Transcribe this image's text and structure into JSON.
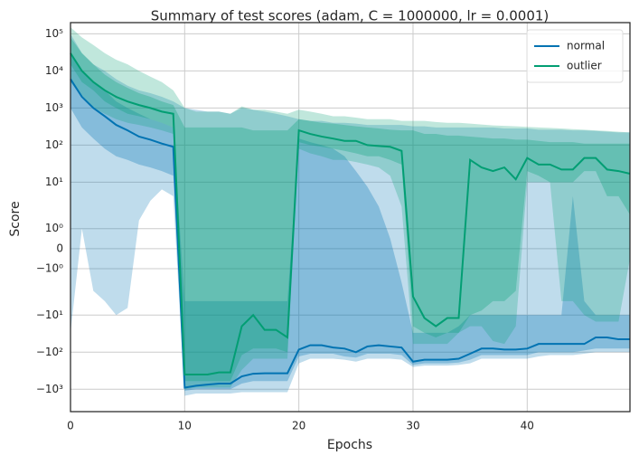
{
  "chart_data": {
    "type": "band-line",
    "title": "Summary of test scores (adam, C = 1000000, lr = 0.0001)",
    "x_label": "Epochs",
    "y_label": "Score",
    "yscale": "symlog",
    "grid": true,
    "legend": "upper right",
    "x": [
      0,
      1,
      2,
      3,
      4,
      5,
      6,
      7,
      8,
      9,
      10,
      11,
      12,
      13,
      14,
      15,
      16,
      17,
      18,
      19,
      20,
      21,
      22,
      23,
      24,
      25,
      26,
      27,
      28,
      29,
      30,
      31,
      32,
      33,
      34,
      35,
      36,
      37,
      38,
      39,
      40,
      41,
      42,
      43,
      44,
      45,
      46,
      47,
      48,
      49
    ],
    "xlim": [
      0,
      49
    ],
    "xticks": [
      0,
      10,
      20,
      30,
      40
    ],
    "ylim": [
      -4000,
      200000
    ],
    "yticks": [
      {
        "value": 100000,
        "label": "10⁵"
      },
      {
        "value": 10000,
        "label": "10⁴"
      },
      {
        "value": 1000,
        "label": "10³"
      },
      {
        "value": 100,
        "label": "10²"
      },
      {
        "value": 10,
        "label": "10¹"
      },
      {
        "value": 1,
        "label": "10⁰"
      },
      0,
      {
        "value": -1,
        "label": "−10⁰"
      },
      {
        "value": -10,
        "label": "−10¹"
      },
      {
        "value": -100,
        "label": "−10²"
      },
      {
        "value": -1000,
        "label": "−10³"
      }
    ],
    "series": [
      {
        "name": "normal",
        "color": "#0173b2",
        "values": [
          6000,
          2000,
          1000,
          600,
          350,
          250,
          170,
          140,
          110,
          90,
          -900,
          -800,
          -750,
          -700,
          -700,
          -450,
          -380,
          -370,
          -370,
          -370,
          -85,
          -65,
          -65,
          -75,
          -80,
          -100,
          -70,
          -65,
          -70,
          -75,
          -180,
          -160,
          -160,
          -160,
          -150,
          -110,
          -80,
          -80,
          -85,
          -85,
          -80,
          -60,
          -60,
          -60,
          -60,
          -60,
          -40,
          -40,
          -45,
          -45
        ],
        "outer_hi": [
          100000,
          30000,
          15000,
          10000,
          6000,
          4000,
          3000,
          2500,
          2000,
          1500,
          1000,
          900,
          800,
          800,
          700,
          1000,
          900,
          800,
          700,
          600,
          500,
          450,
          450,
          400,
          400,
          380,
          350,
          350,
          350,
          350,
          320,
          320,
          300,
          300,
          300,
          300,
          300,
          300,
          280,
          280,
          280,
          260,
          260,
          260,
          250,
          250,
          240,
          230,
          220,
          220
        ],
        "outer_lo": [
          -30,
          1,
          -3,
          -5,
          -10,
          -7,
          1.5,
          4,
          7,
          5,
          -1500,
          -1300,
          -1300,
          -1300,
          -1300,
          -1200,
          -1200,
          -1200,
          -1200,
          -1200,
          -200,
          -150,
          -150,
          -150,
          -160,
          -180,
          -150,
          -150,
          -150,
          -160,
          -250,
          -230,
          -230,
          -230,
          -220,
          -200,
          -150,
          -150,
          -150,
          -150,
          -150,
          -130,
          -120,
          -120,
          -120,
          -110,
          -100,
          -100,
          -100,
          -100
        ],
        "inner_hi": [
          30000,
          10000,
          5000,
          3000,
          1500,
          1000,
          700,
          500,
          400,
          300,
          -5,
          -5,
          -5,
          -5,
          -5,
          -5,
          -5,
          -5,
          -5,
          -5,
          150,
          120,
          100,
          80,
          50,
          20,
          8,
          3,
          0.5,
          -2,
          -30,
          -30,
          -30,
          -30,
          -20,
          -10,
          -10,
          -10,
          -10,
          -10,
          -10,
          -10,
          -10,
          -10,
          5,
          -5,
          -10,
          -10,
          -10,
          -10
        ],
        "inner_lo": [
          1000,
          300,
          150,
          80,
          50,
          40,
          30,
          25,
          20,
          15,
          -1100,
          -1000,
          -1000,
          -1000,
          -1000,
          -700,
          -600,
          -600,
          -600,
          -600,
          -130,
          -110,
          -110,
          -110,
          -130,
          -140,
          -110,
          -110,
          -110,
          -120,
          -220,
          -200,
          -200,
          -200,
          -190,
          -160,
          -120,
          -120,
          -120,
          -120,
          -120,
          -100,
          -100,
          -100,
          -100,
          -90,
          -80,
          -80,
          -80,
          -80
        ]
      },
      {
        "name": "outlier",
        "color": "#029e73",
        "values": [
          30000,
          10000,
          5000,
          3000,
          2000,
          1500,
          1200,
          1000,
          800,
          700,
          -400,
          -400,
          -400,
          -350,
          -350,
          -20,
          -10,
          -25,
          -25,
          -40,
          250,
          200,
          170,
          150,
          130,
          130,
          100,
          95,
          90,
          70,
          -4,
          -12,
          -20,
          -12,
          -12,
          40,
          25,
          20,
          25,
          12,
          45,
          30,
          30,
          22,
          22,
          45,
          45,
          22,
          20,
          17
        ],
        "outer_hi": [
          150000,
          80000,
          50000,
          30000,
          20000,
          15000,
          10000,
          7000,
          5000,
          3000,
          1000,
          800,
          800,
          800,
          700,
          1100,
          900,
          900,
          800,
          700,
          900,
          800,
          700,
          600,
          600,
          550,
          500,
          500,
          500,
          450,
          450,
          450,
          420,
          400,
          400,
          380,
          360,
          340,
          330,
          320,
          310,
          300,
          290,
          280,
          270,
          260,
          250,
          240,
          230,
          220
        ],
        "outer_lo": [
          5000,
          2000,
          1000,
          700,
          500,
          400,
          350,
          300,
          250,
          200,
          -1000,
          -900,
          -900,
          -900,
          -900,
          -300,
          -150,
          -150,
          -150,
          -150,
          80,
          60,
          50,
          40,
          40,
          35,
          30,
          25,
          15,
          3,
          -60,
          -60,
          -60,
          -60,
          -30,
          -20,
          -20,
          -50,
          -60,
          -20,
          10,
          10,
          10,
          -5,
          -5,
          -10,
          -15,
          -15,
          -15,
          -0.5
        ],
        "inner_hi": [
          80000,
          30000,
          15000,
          8000,
          5000,
          3500,
          2500,
          2000,
          1500,
          1200,
          300,
          300,
          300,
          300,
          300,
          300,
          250,
          250,
          250,
          250,
          500,
          450,
          400,
          380,
          350,
          320,
          300,
          280,
          260,
          250,
          250,
          200,
          200,
          180,
          180,
          170,
          160,
          150,
          150,
          140,
          140,
          130,
          120,
          120,
          120,
          110,
          110,
          110,
          110,
          110
        ],
        "inner_lo": [
          15000,
          5000,
          3000,
          1500,
          1000,
          700,
          600,
          500,
          400,
          300,
          -600,
          -600,
          -600,
          -600,
          -600,
          -120,
          -80,
          -80,
          -80,
          -100,
          120,
          100,
          90,
          80,
          70,
          60,
          50,
          50,
          40,
          30,
          -20,
          -30,
          -40,
          -30,
          -30,
          -10,
          -8,
          -5,
          -5,
          -3,
          20,
          15,
          10,
          10,
          10,
          20,
          20,
          5,
          5,
          2
        ]
      }
    ]
  }
}
